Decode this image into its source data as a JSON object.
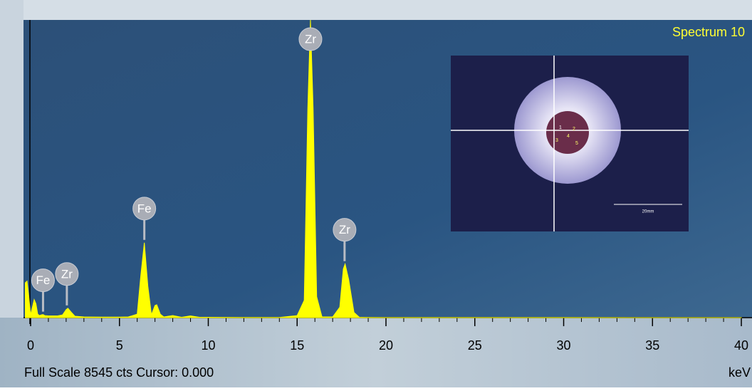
{
  "chart_data": {
    "type": "spectrum",
    "title": "Spectrum 10",
    "footer": "Full Scale 8545 cts Cursor: 0.000",
    "x_label": "keV",
    "color": "#ffff00",
    "x": [
      -0.3,
      -0.2,
      -0.1,
      0,
      0.1,
      0.2,
      0.3,
      0.4,
      0.5,
      0.6,
      0.7,
      0.8,
      1.0,
      1.5,
      1.8,
      2.0,
      2.1,
      2.3,
      2.5,
      3,
      4,
      5,
      5.5,
      6.0,
      6.2,
      6.4,
      6.6,
      6.8,
      7.0,
      7.1,
      7.3,
      7.5,
      8,
      8.5,
      9,
      9.5,
      10,
      12,
      14,
      15,
      15.4,
      15.6,
      15.75,
      15.9,
      16.1,
      16.4,
      17,
      17.4,
      17.6,
      17.7,
      17.9,
      18.2,
      18.5,
      19,
      20,
      25,
      30,
      35,
      40
    ],
    "values": [
      1000,
      1050,
      600,
      80,
      300,
      520,
      400,
      100,
      60,
      80,
      90,
      60,
      50,
      50,
      80,
      230,
      270,
      150,
      40,
      20,
      15,
      15,
      20,
      100,
      1200,
      2150,
      900,
      80,
      350,
      370,
      100,
      20,
      60,
      10,
      50,
      10,
      10,
      5,
      5,
      60,
      500,
      6000,
      8545,
      6000,
      600,
      20,
      20,
      300,
      1400,
      1540,
      1100,
      150,
      10,
      5,
      3,
      2,
      2,
      1,
      1
    ],
    "xlim": [
      -0.4,
      40.6
    ],
    "ylim": [
      0,
      8545
    ],
    "xticks": [
      0,
      5,
      10,
      15,
      20,
      25,
      30,
      35,
      40
    ],
    "peak_labels": [
      {
        "label": "Fe",
        "x": 0.7
      },
      {
        "label": "Zr",
        "x": 2.04
      },
      {
        "label": "Fe",
        "x": 6.4
      },
      {
        "label": "Zr",
        "x": 15.75
      },
      {
        "label": "Zr",
        "x": 17.67
      }
    ],
    "inset": {
      "markers": [
        "1",
        "2",
        "3",
        "4",
        "5"
      ],
      "scale_label": "20mm"
    }
  }
}
